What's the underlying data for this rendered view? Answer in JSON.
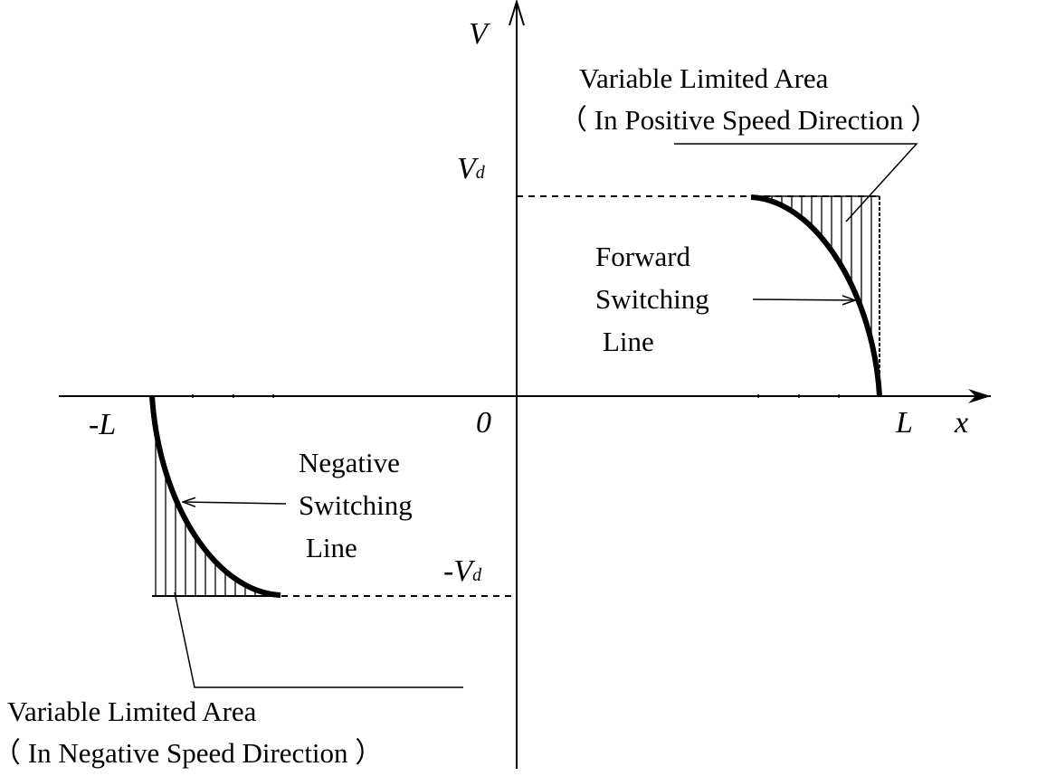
{
  "axes": {
    "y_label": "V",
    "x_label": "x",
    "origin": "0",
    "pos_x_mark": "L",
    "neg_x_mark": "-L",
    "pos_v_mark": {
      "main": "V",
      "sub": "d"
    },
    "neg_v_mark": {
      "main": "-V",
      "sub": "d"
    }
  },
  "positive_region": {
    "title": "Variable Limited Area",
    "subtitle": "（ In Positive Speed Direction ）"
  },
  "forward_line": [
    "Forward",
    "Switching",
    "Line"
  ],
  "negative_line": [
    "Negative",
    "Switching",
    "Line"
  ],
  "negative_region": {
    "title": "Variable Limited Area",
    "subtitle": "（ In Negative Speed Direction ）"
  }
}
